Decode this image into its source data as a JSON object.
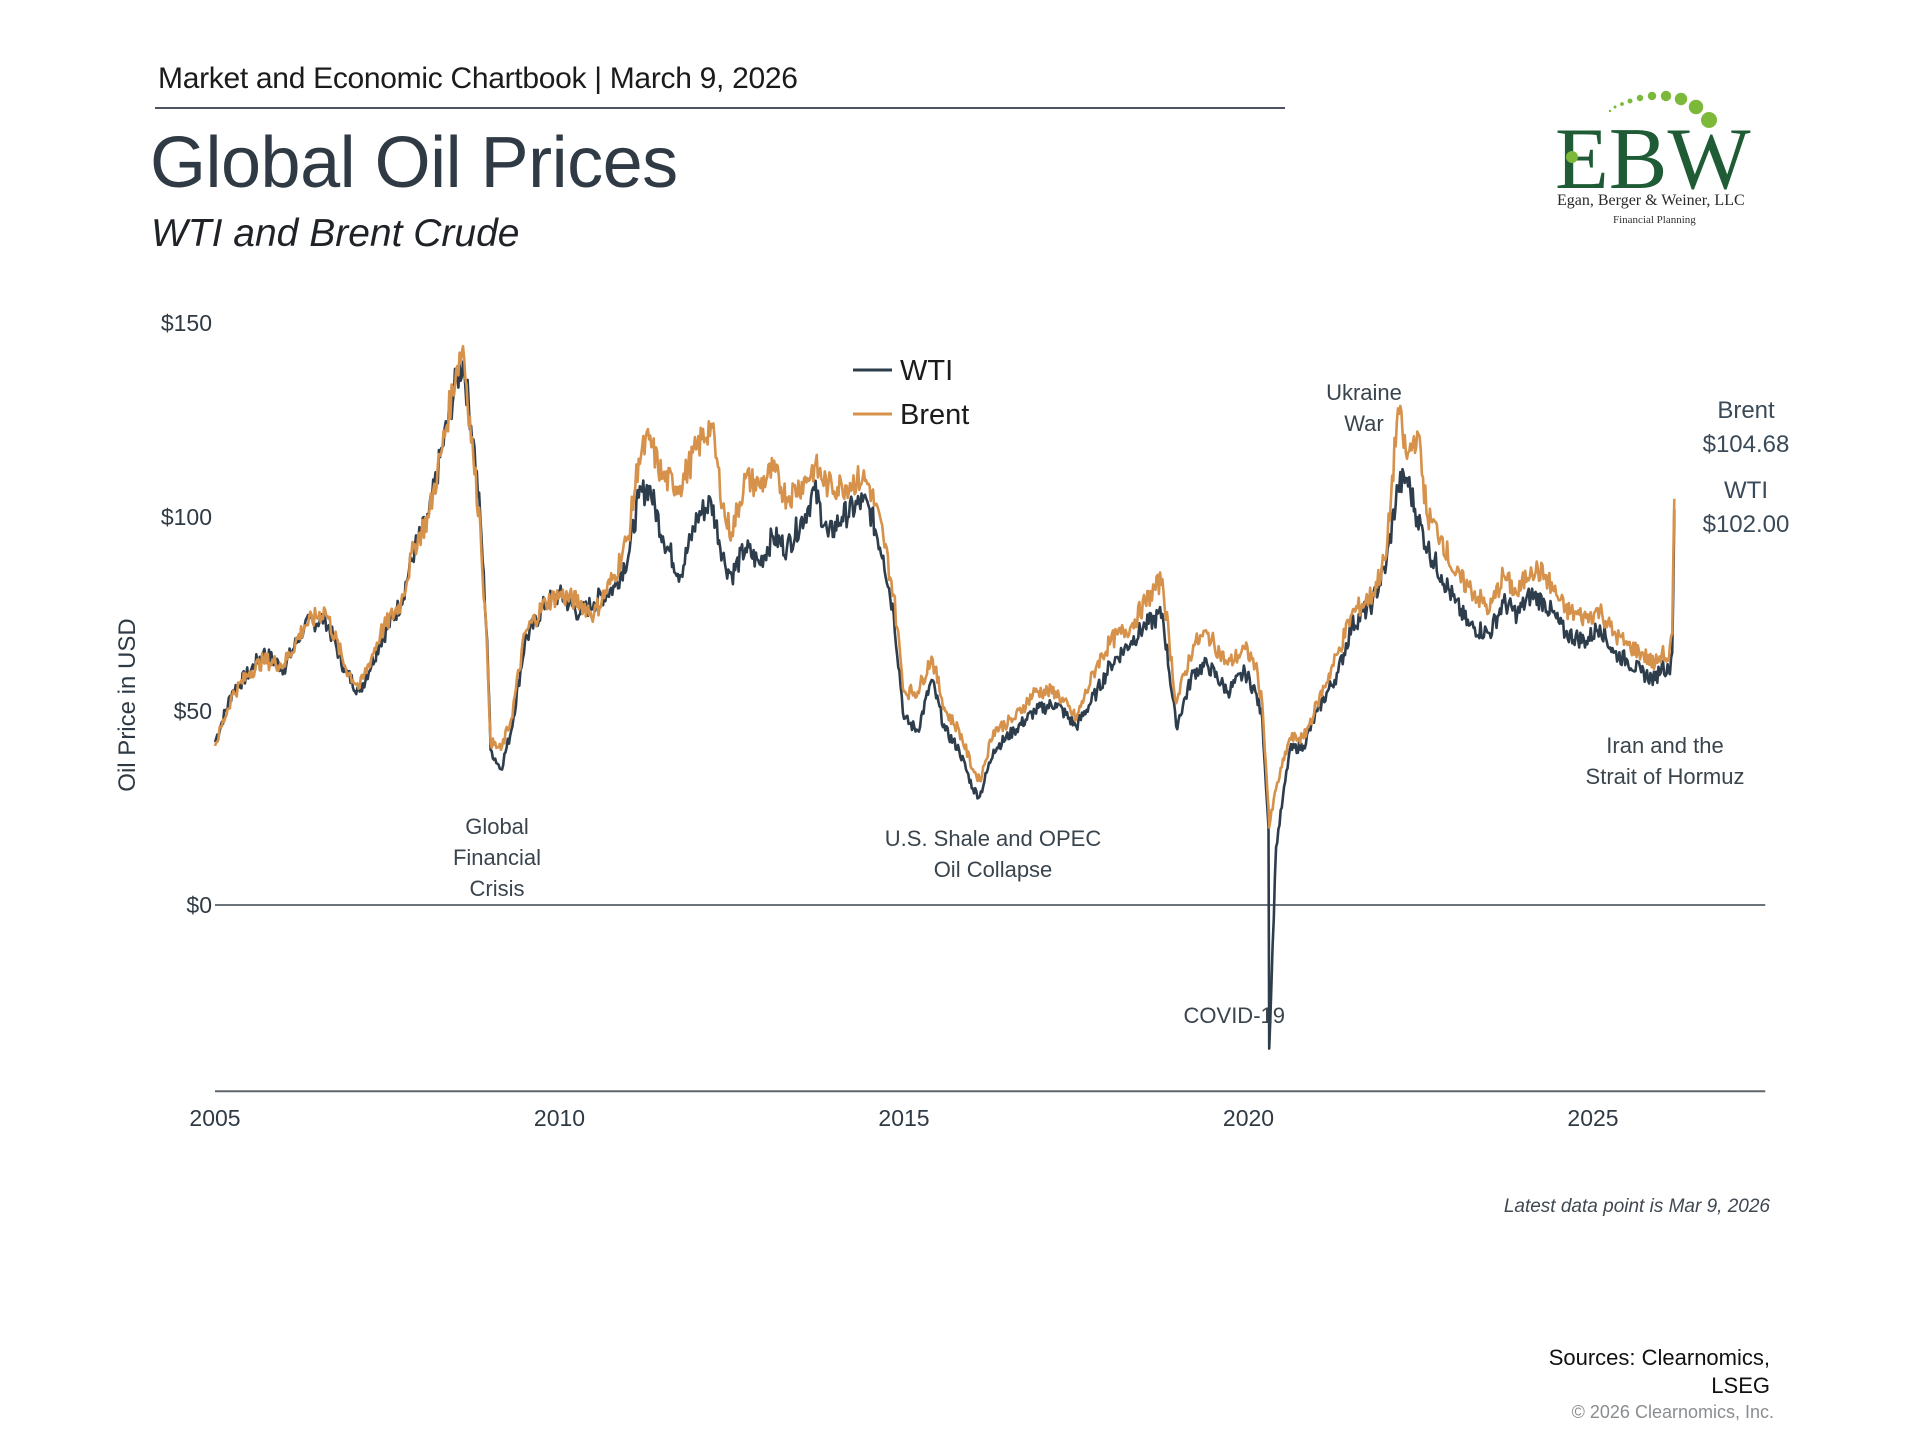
{
  "header": {
    "chartbook": "Market and Economic Chartbook | March 9, 2026",
    "title": "Global Oil Prices",
    "subtitle": "WTI and Brent Crude"
  },
  "logo": {
    "letters": "EBW",
    "name": "Egan, Berger & Weiner, LLC",
    "tagline": "Financial Planning",
    "colors": {
      "dark_green": "#1f5c36",
      "light_green": "#7cb83a"
    }
  },
  "footer": {
    "note": "Latest data point is Mar 9, 2026",
    "sources_line1": "Sources: Clearnomics,",
    "sources_line2": "LSEG",
    "copyright": "© 2026 Clearnomics, Inc."
  },
  "chart_data": {
    "type": "line",
    "title": "Global Oil Prices",
    "subtitle": "WTI and Brent Crude",
    "xlabel": "",
    "ylabel": "Oil Price in USD",
    "xlim": [
      2005,
      2027.5
    ],
    "ylim": [
      -48,
      150
    ],
    "x_ticks": [
      {
        "value": 2005,
        "label": "2005"
      },
      {
        "value": 2010,
        "label": "2010"
      },
      {
        "value": 2015,
        "label": "2015"
      },
      {
        "value": 2020,
        "label": "2020"
      },
      {
        "value": 2025,
        "label": "2025"
      }
    ],
    "y_ticks": [
      {
        "value": 0,
        "label": "$0"
      },
      {
        "value": 50,
        "label": "$50"
      },
      {
        "value": 100,
        "label": "$100"
      },
      {
        "value": 150,
        "label": "$150"
      }
    ],
    "grid": false,
    "legend": {
      "position": "top-center",
      "entries": [
        "WTI",
        "Brent"
      ]
    },
    "series": [
      {
        "name": "WTI",
        "color": "#2e3d4c",
        "x": [
          2005.0,
          2005.25,
          2005.5,
          2005.7,
          2006.0,
          2006.3,
          2006.6,
          2006.9,
          2007.1,
          2007.4,
          2007.7,
          2007.9,
          2008.1,
          2008.3,
          2008.5,
          2008.6,
          2008.75,
          2008.85,
          2008.95,
          2009.0,
          2009.15,
          2009.3,
          2009.5,
          2009.8,
          2010.0,
          2010.3,
          2010.5,
          2010.8,
          2011.0,
          2011.15,
          2011.3,
          2011.5,
          2011.75,
          2012.0,
          2012.2,
          2012.4,
          2012.5,
          2012.7,
          2012.9,
          2013.1,
          2013.3,
          2013.6,
          2013.7,
          2013.9,
          2014.1,
          2014.4,
          2014.5,
          2014.7,
          2014.85,
          2015.0,
          2015.2,
          2015.4,
          2015.6,
          2015.8,
          2016.0,
          2016.1,
          2016.3,
          2016.6,
          2016.9,
          2017.2,
          2017.5,
          2017.8,
          2018.0,
          2018.3,
          2018.5,
          2018.75,
          2018.95,
          2019.2,
          2019.4,
          2019.7,
          2019.95,
          2020.1,
          2020.2,
          2020.29,
          2020.3,
          2020.4,
          2020.6,
          2020.8,
          2021.0,
          2021.3,
          2021.5,
          2021.8,
          2022.0,
          2022.17,
          2022.3,
          2022.45,
          2022.6,
          2022.8,
          2023.0,
          2023.2,
          2023.5,
          2023.7,
          2023.9,
          2024.1,
          2024.3,
          2024.6,
          2024.9,
          2025.1,
          2025.3,
          2025.5,
          2025.7,
          2025.9,
          2026.0,
          2026.1,
          2026.15,
          2026.18
        ],
        "y": [
          42,
          55,
          60,
          65,
          61,
          72,
          74,
          60,
          55,
          68,
          78,
          92,
          100,
          118,
          135,
          140,
          120,
          100,
          68,
          40,
          35,
          45,
          68,
          78,
          80,
          75,
          78,
          82,
          90,
          105,
          108,
          95,
          85,
          100,
          104,
          88,
          85,
          92,
          88,
          95,
          92,
          102,
          107,
          95,
          100,
          104,
          102,
          90,
          75,
          48,
          45,
          58,
          45,
          40,
          30,
          28,
          40,
          45,
          50,
          52,
          46,
          55,
          62,
          68,
          72,
          75,
          46,
          60,
          62,
          55,
          60,
          55,
          48,
          20,
          -37,
          15,
          40,
          41,
          50,
          60,
          72,
          78,
          88,
          108,
          110,
          100,
          92,
          85,
          78,
          72,
          70,
          78,
          75,
          80,
          78,
          70,
          68,
          72,
          65,
          63,
          60,
          58,
          62,
          60,
          65,
          102
        ]
      },
      {
        "name": "Brent",
        "color": "#d6914a",
        "x": [
          2005.0,
          2005.25,
          2005.5,
          2005.7,
          2006.0,
          2006.3,
          2006.6,
          2006.9,
          2007.1,
          2007.4,
          2007.7,
          2007.9,
          2008.1,
          2008.3,
          2008.5,
          2008.6,
          2008.75,
          2008.85,
          2008.95,
          2009.0,
          2009.15,
          2009.3,
          2009.5,
          2009.8,
          2010.0,
          2010.3,
          2010.5,
          2010.8,
          2011.0,
          2011.15,
          2011.3,
          2011.5,
          2011.75,
          2012.0,
          2012.2,
          2012.4,
          2012.5,
          2012.7,
          2012.9,
          2013.1,
          2013.3,
          2013.6,
          2013.7,
          2013.9,
          2014.1,
          2014.4,
          2014.5,
          2014.7,
          2014.85,
          2015.0,
          2015.2,
          2015.4,
          2015.6,
          2015.8,
          2016.0,
          2016.1,
          2016.3,
          2016.6,
          2016.9,
          2017.2,
          2017.5,
          2017.8,
          2018.0,
          2018.3,
          2018.5,
          2018.75,
          2018.95,
          2019.2,
          2019.4,
          2019.7,
          2019.95,
          2020.1,
          2020.2,
          2020.29,
          2020.3,
          2020.4,
          2020.6,
          2020.8,
          2021.0,
          2021.3,
          2021.5,
          2021.8,
          2022.0,
          2022.17,
          2022.3,
          2022.45,
          2022.6,
          2022.8,
          2023.0,
          2023.2,
          2023.5,
          2023.7,
          2023.9,
          2024.1,
          2024.3,
          2024.6,
          2024.9,
          2025.1,
          2025.3,
          2025.5,
          2025.7,
          2025.9,
          2026.0,
          2026.1,
          2026.15,
          2026.18
        ],
        "y": [
          41,
          54,
          60,
          63,
          62,
          72,
          76,
          61,
          56,
          70,
          78,
          93,
          100,
          118,
          138,
          144,
          115,
          98,
          65,
          42,
          40,
          48,
          70,
          78,
          80,
          78,
          75,
          85,
          95,
          115,
          120,
          110,
          108,
          118,
          124,
          100,
          96,
          110,
          108,
          112,
          105,
          110,
          113,
          108,
          108,
          110,
          108,
          95,
          80,
          55,
          55,
          64,
          50,
          45,
          35,
          32,
          45,
          48,
          55,
          55,
          48,
          62,
          68,
          72,
          78,
          84,
          52,
          67,
          70,
          62,
          66,
          62,
          52,
          25,
          20,
          30,
          43,
          43,
          52,
          65,
          75,
          80,
          90,
          128,
          115,
          122,
          100,
          95,
          85,
          82,
          76,
          85,
          80,
          87,
          85,
          76,
          74,
          76,
          70,
          67,
          65,
          62,
          65,
          63,
          70,
          104.68
        ]
      }
    ],
    "end_labels": [
      {
        "series": "Brent",
        "name": "Brent",
        "value": "$104.68"
      },
      {
        "series": "WTI",
        "name": "WTI",
        "value": "$102.00"
      }
    ],
    "annotations": [
      {
        "id": "gfc",
        "lines": [
          "Global",
          "Financial",
          "Crisis"
        ],
        "x": 2009.0
      },
      {
        "id": "shale",
        "lines": [
          "U.S. Shale and OPEC",
          "Oil Collapse"
        ],
        "x": 2016.2
      },
      {
        "id": "covid",
        "lines": [
          "COVID-19"
        ],
        "x": 2020.3
      },
      {
        "id": "ukraine",
        "lines": [
          "Ukraine",
          "War"
        ],
        "x": 2022.2
      },
      {
        "id": "iran",
        "lines": [
          "Iran and the",
          "Strait of Hormuz"
        ],
        "x": 2025.8
      }
    ]
  }
}
